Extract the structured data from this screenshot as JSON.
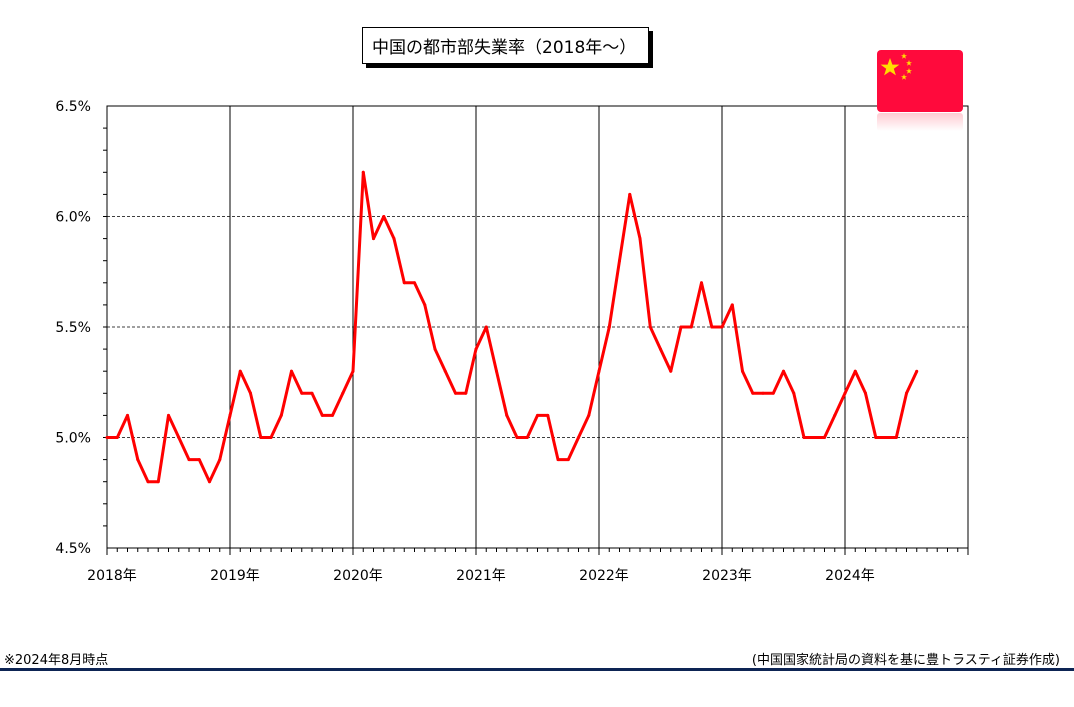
{
  "title": "中国の都市部失業率（2018年〜）",
  "colors": {
    "line": "#ff0000",
    "flag_red": "#ff0a3c",
    "flag_star": "#ffde00",
    "footer_rule": "#0d2454"
  },
  "flag_icon": "china-flag-icon",
  "footnote": "※2024年8月時点",
  "source": "(中国国家統計局の資料を基に豊トラスティ証券作成)",
  "chart_data": {
    "type": "line",
    "title": "中国の都市部失業率（2018年〜）",
    "xlabel": "",
    "ylabel": "",
    "ylim": [
      4.5,
      6.5
    ],
    "y_ticks": [
      "4.5%",
      "5.0%",
      "5.5%",
      "6.0%",
      "6.5%"
    ],
    "x_tick_labels": [
      "2018年",
      "2019年",
      "2020年",
      "2021年",
      "2022年",
      "2023年",
      "2024年"
    ],
    "x_range_months": 84,
    "grid": "horizontal dashed + vertical year lines",
    "series": [
      {
        "values": [
          5.0,
          5.0,
          5.1,
          4.9,
          4.8,
          4.8,
          5.1,
          5.0,
          4.9,
          4.9,
          4.8,
          4.9,
          5.1,
          5.3,
          5.2,
          5.0,
          5.0,
          5.1,
          5.3,
          5.2,
          5.2,
          5.1,
          5.1,
          5.2,
          5.3,
          6.2,
          5.9,
          6.0,
          5.9,
          5.7,
          5.7,
          5.6,
          5.4,
          5.3,
          5.2,
          5.2,
          5.4,
          5.5,
          5.3,
          5.1,
          5.0,
          5.0,
          5.1,
          5.1,
          4.9,
          4.9,
          5.0,
          5.1,
          5.3,
          5.5,
          5.8,
          6.1,
          5.9,
          5.5,
          5.4,
          5.3,
          5.5,
          5.5,
          5.7,
          5.5,
          5.5,
          5.6,
          5.3,
          5.2,
          5.2,
          5.2,
          5.3,
          5.2,
          5.0,
          5.0,
          5.0,
          5.1,
          5.2,
          5.3,
          5.2,
          5.0,
          5.0,
          5.0,
          5.2,
          5.3
        ]
      }
    ]
  }
}
